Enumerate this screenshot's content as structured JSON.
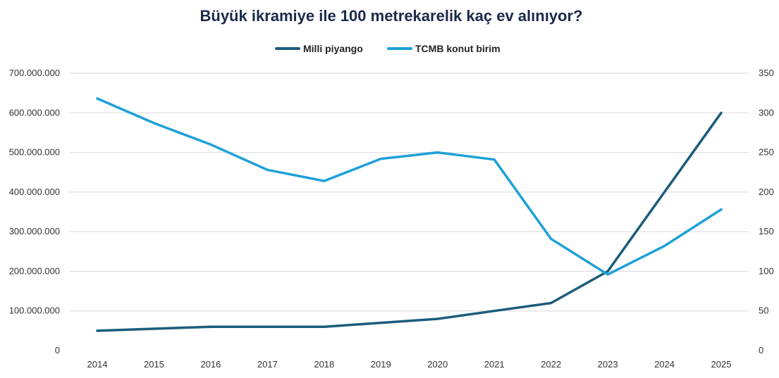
{
  "chart_data": {
    "type": "line",
    "title": "Büyük ikramiye ile 100 metrekarelik kaç ev alınıyor?",
    "legend_position": "top",
    "grid": true,
    "x": [
      "2014",
      "2015",
      "2016",
      "2017",
      "2018",
      "2019",
      "2020",
      "2021",
      "2022",
      "2023",
      "2024",
      "2025"
    ],
    "y_left": {
      "ylim": [
        0,
        700000000
      ],
      "ticks": [
        0,
        100000000,
        200000000,
        300000000,
        400000000,
        500000000,
        600000000,
        700000000
      ],
      "tick_labels": [
        "0",
        "100.000.000",
        "200.000.000",
        "300.000.000",
        "400.000.000",
        "500.000.000",
        "600.000.000",
        "700.000.000"
      ]
    },
    "y_right": {
      "ylim": [
        0,
        350
      ],
      "ticks": [
        0,
        50,
        100,
        150,
        200,
        250,
        300,
        350
      ],
      "tick_labels": [
        "0",
        "50",
        "100",
        "150",
        "200",
        "250",
        "300",
        "350"
      ]
    },
    "series": [
      {
        "name": "Milli piyango",
        "axis": "left",
        "color": "#1b5c7c",
        "values": [
          50000000,
          55000000,
          60000000,
          60000000,
          60000000,
          70000000,
          80000000,
          100000000,
          120000000,
          200000000,
          400000000,
          600000000
        ]
      },
      {
        "name": "TCMB konut birim",
        "axis": "right",
        "color": "#1ea0d8",
        "values": [
          318,
          287,
          260,
          228,
          214,
          242,
          250,
          241,
          141,
          96,
          132,
          178
        ]
      }
    ]
  }
}
